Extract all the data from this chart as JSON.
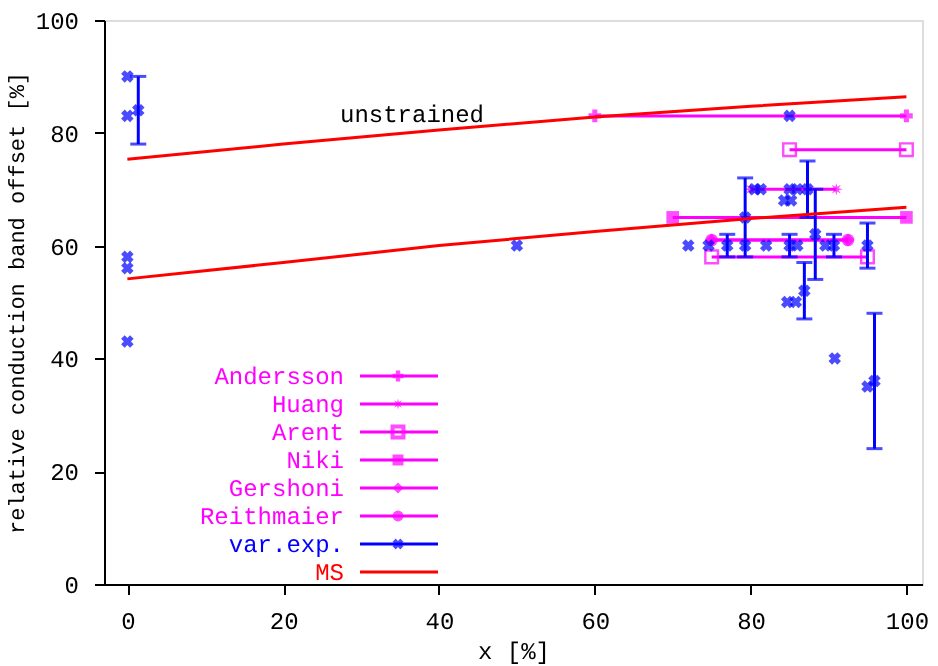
{
  "chart_data": {
    "type": "line",
    "xlabel": "x [%]",
    "ylabel": "relative conduction band offset [%]",
    "xlim": [
      -3,
      102
    ],
    "ylim": [
      0,
      100
    ],
    "xticks": [
      0,
      20,
      40,
      60,
      80,
      100
    ],
    "yticks": [
      0,
      20,
      40,
      60,
      80,
      100
    ],
    "grid": false,
    "legend": "left",
    "annotations": [
      "unstrained"
    ],
    "series": [
      {
        "name": "Andersson",
        "color": "#ff00ff",
        "type": "line",
        "marker": "cross",
        "x": [
          60,
          100
        ],
        "values": [
          83,
          83
        ]
      },
      {
        "name": "Huang",
        "color": "#ff00ff",
        "type": "line",
        "marker": "star",
        "x": [
          80,
          91
        ],
        "values": [
          70,
          70
        ]
      },
      {
        "name": "Arent",
        "color": "#ff00ff",
        "type": "line",
        "marker": "square",
        "x": [
          85,
          100,
          87,
          75,
          95
        ],
        "values": [
          77,
          77,
          null,
          58,
          58
        ]
      },
      {
        "name": "Niki",
        "color": "#ff00ff",
        "type": "line",
        "marker": "square",
        "x": [
          70,
          100
        ],
        "values": [
          65,
          65
        ]
      },
      {
        "name": "Gershoni",
        "color": "#ff00ff",
        "type": "line",
        "marker": "diamond",
        "x": [
          75,
          92.5
        ],
        "values": [
          61,
          61
        ]
      },
      {
        "name": "Reithmaier",
        "color": "#ff00ff",
        "type": "line",
        "marker": "circle",
        "x": [
          75,
          92.5
        ],
        "values": [
          61,
          61
        ]
      },
      {
        "name": "var.exp.",
        "color": "#0000ff",
        "type": "scatter",
        "marker": "cross",
        "x": [
          0,
          0,
          1.4,
          0,
          0,
          0,
          50,
          72,
          74.6,
          77,
          79.3,
          82,
          85,
          86,
          89.6,
          90.7,
          95,
          85,
          79.3,
          80.5,
          81.3,
          85,
          86,
          87.3,
          84.3,
          85.2,
          88.3,
          86.9,
          84.7,
          85.8,
          90.8,
          95,
          95.9
        ],
        "values": [
          90,
          83,
          84,
          58,
          56,
          43,
          60,
          60,
          60,
          60,
          60,
          60,
          60,
          60,
          60,
          60,
          60,
          83,
          65,
          70,
          70,
          70,
          70,
          70,
          68,
          68,
          62,
          52,
          50,
          50,
          40,
          35,
          36
        ],
        "errors": [
          null,
          null,
          [
            78,
            90
          ],
          null,
          null,
          null,
          null,
          null,
          null,
          [
            58,
            62
          ],
          null,
          null,
          [
            58,
            62
          ],
          null,
          null,
          [
            58,
            62
          ],
          [
            56,
            64
          ],
          null,
          [
            58,
            72
          ],
          null,
          null,
          null,
          null,
          [
            65,
            75
          ],
          null,
          null,
          [
            54,
            70
          ],
          [
            47,
            57
          ],
          null,
          null,
          null,
          null,
          [
            24,
            48
          ]
        ]
      },
      {
        "name": "MS",
        "color": "#ff0000",
        "type": "line",
        "marker": "none",
        "x": [
          0,
          20,
          40,
          60,
          80,
          100
        ],
        "values": [
          75.3,
          78,
          80.5,
          82.8,
          84.7,
          86.4
        ]
      },
      {
        "color": "#ff0000",
        "type": "line",
        "marker": "none",
        "x": [
          0,
          20,
          40,
          60,
          80,
          100
        ],
        "values": [
          54.1,
          57,
          60,
          62.5,
          64.8,
          66.8
        ]
      }
    ]
  }
}
